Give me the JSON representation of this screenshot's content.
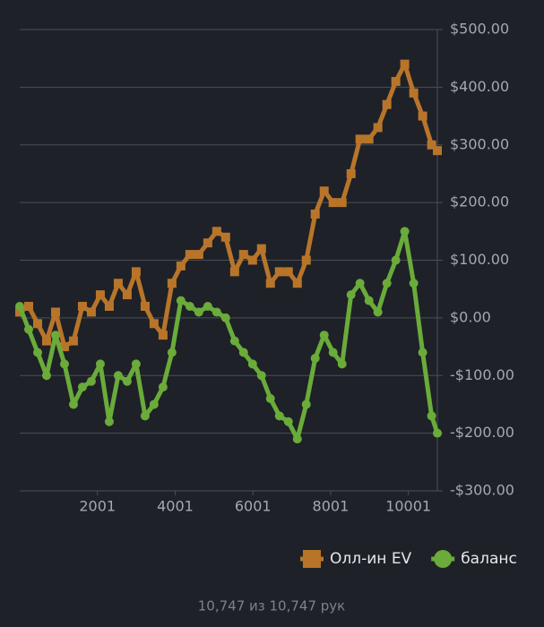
{
  "chart_data": {
    "type": "line",
    "x": [
      1,
      231,
      462,
      692,
      923,
      1153,
      1384,
      1614,
      1844,
      2075,
      2305,
      2536,
      2766,
      2996,
      3227,
      3457,
      3688,
      3918,
      4148,
      4379,
      4609,
      4840,
      5070,
      5300,
      5531,
      5761,
      5992,
      6222,
      6452,
      6683,
      6913,
      7144,
      7374,
      7604,
      7835,
      8065,
      8296,
      8526,
      8756,
      8987,
      9217,
      9448,
      9678,
      9908,
      10139,
      10369,
      10600,
      10747
    ],
    "series": [
      {
        "name": "Олл-ин EV",
        "color": "#b8752a",
        "marker": "square",
        "values": [
          10,
          20,
          -10,
          -40,
          10,
          -50,
          -40,
          20,
          10,
          40,
          20,
          60,
          40,
          80,
          20,
          -10,
          -30,
          60,
          90,
          110,
          110,
          130,
          150,
          140,
          80,
          110,
          100,
          120,
          60,
          80,
          80,
          60,
          100,
          180,
          220,
          200,
          200,
          250,
          310,
          310,
          330,
          370,
          410,
          440,
          390,
          350,
          300,
          290
        ]
      },
      {
        "name": "баланс",
        "color": "#6aab3a",
        "marker": "circle",
        "values": [
          20,
          -20,
          -60,
          -100,
          -30,
          -80,
          -150,
          -120,
          -110,
          -80,
          -180,
          -100,
          -110,
          -80,
          -170,
          -150,
          -120,
          -60,
          30,
          20,
          10,
          20,
          10,
          0,
          -40,
          -60,
          -80,
          -100,
          -140,
          -170,
          -180,
          -210,
          -150,
          -70,
          -30,
          -60,
          -80,
          40,
          60,
          30,
          10,
          60,
          100,
          150,
          60,
          -60,
          -170,
          -200
        ]
      }
    ],
    "xlim": [
      1,
      10747
    ],
    "xticks": [
      2001,
      4001,
      6001,
      8001,
      10001
    ],
    "ylim": [
      -300,
      500
    ],
    "yticks": [
      {
        "value": -300,
        "label": "-$300.00"
      },
      {
        "value": -200,
        "label": "-$200.00"
      },
      {
        "value": -100,
        "label": "-$100.00"
      },
      {
        "value": 0,
        "label": "$0.00"
      },
      {
        "value": 100,
        "label": "$100.00"
      },
      {
        "value": 200,
        "label": "$200.00"
      },
      {
        "value": 300,
        "label": "$300.00"
      },
      {
        "value": 400,
        "label": "$400.00"
      },
      {
        "value": 500,
        "label": "$500.00"
      }
    ],
    "grid": true,
    "legend": "bottom-right"
  },
  "footer": "10,747 из 10,747 рук"
}
